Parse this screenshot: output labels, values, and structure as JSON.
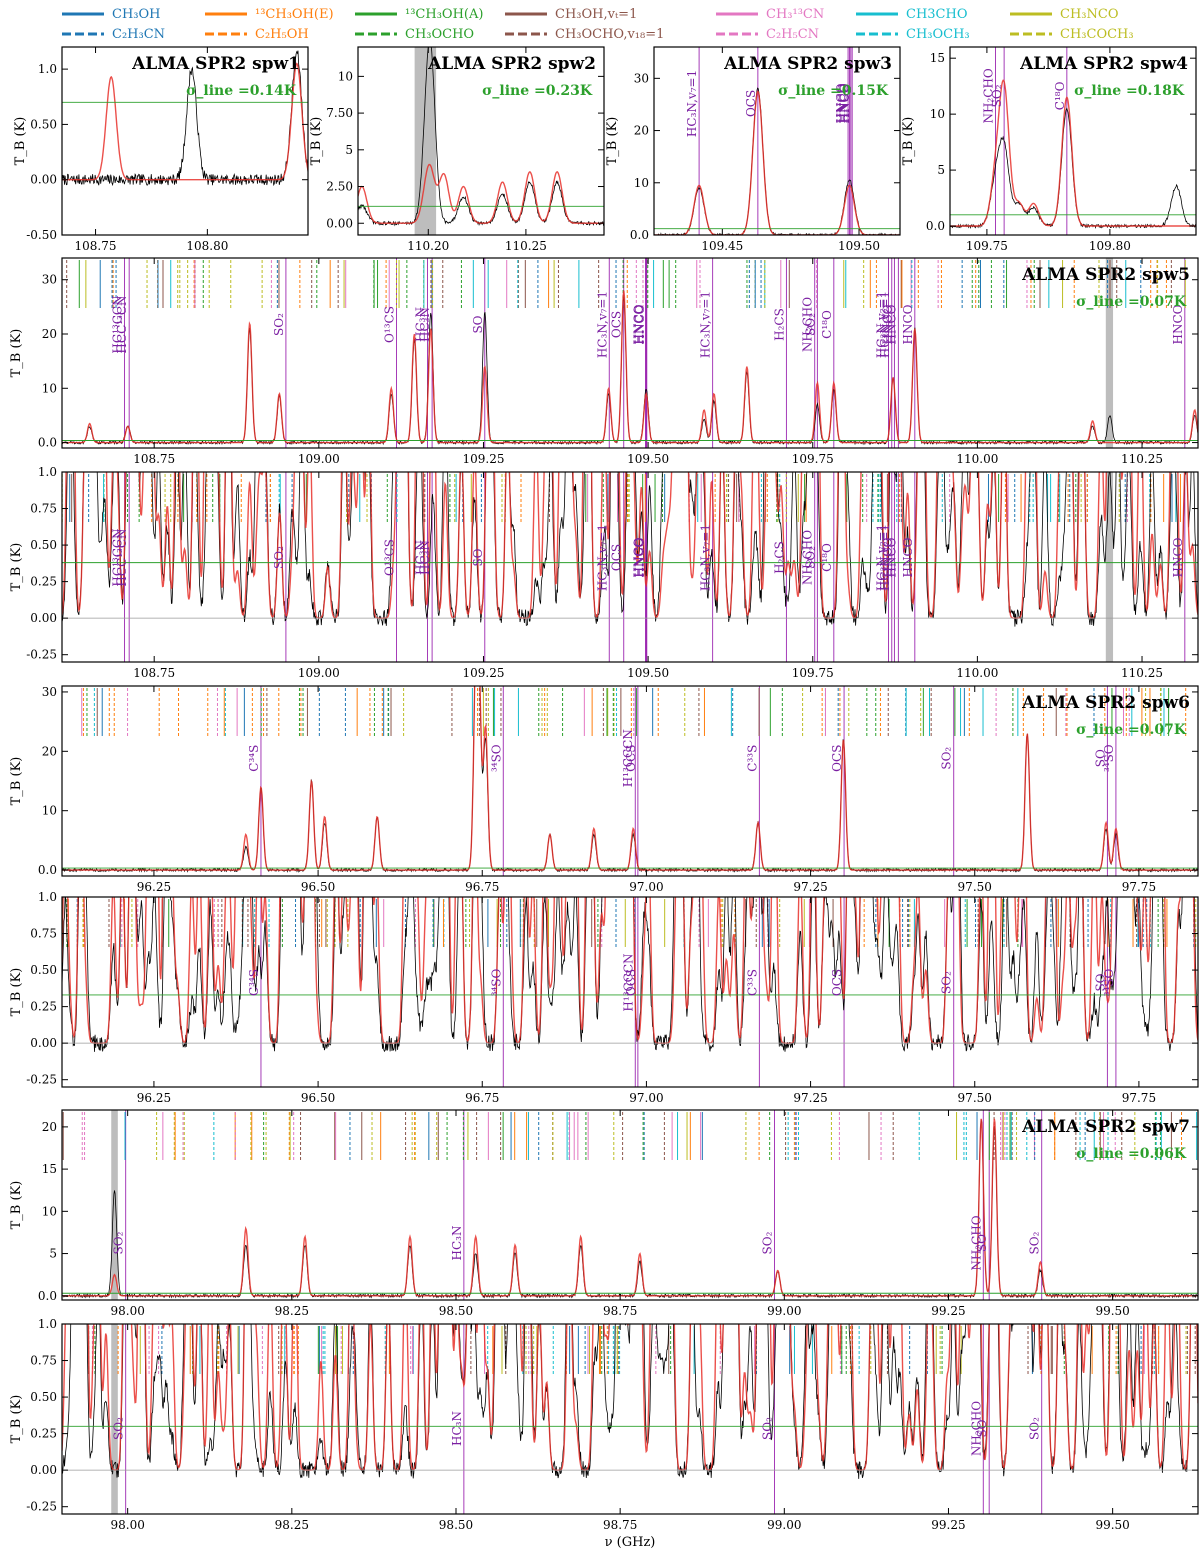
{
  "legend": [
    {
      "label": "CH₃OH",
      "color": "#1f77b4",
      "dash": "solid"
    },
    {
      "label": "C₂H₃CN",
      "color": "#1f77b4",
      "dash": "dashed"
    },
    {
      "label": "¹³CH₃OH(E)",
      "color": "#ff7f0e",
      "dash": "solid"
    },
    {
      "label": "C₂H₅OH",
      "color": "#ff7f0e",
      "dash": "dashed"
    },
    {
      "label": "¹³CH₃OH(A)",
      "color": "#2ca02c",
      "dash": "solid"
    },
    {
      "label": "CH₃OCHO",
      "color": "#2ca02c",
      "dash": "dashed"
    },
    {
      "label": "CH₃OH,vₜ=1",
      "color": "#8c564b",
      "dash": "solid"
    },
    {
      "label": "CH₃OCHO,v₁₈=1",
      "color": "#8c564b",
      "dash": "dashed"
    },
    {
      "label": "CH₃¹³CN",
      "color": "#e377c2",
      "dash": "solid"
    },
    {
      "label": "C₂H₅CN",
      "color": "#e377c2",
      "dash": "dashed"
    },
    {
      "label": "CH3CHO",
      "color": "#17becf",
      "dash": "solid"
    },
    {
      "label": "CH₃OCH₃",
      "color": "#17becf",
      "dash": "dashed"
    },
    {
      "label": "CH₃NCO",
      "color": "#bcbd22",
      "dash": "solid"
    },
    {
      "label": "CH₃COCH₃",
      "color": "#bcbd22",
      "dash": "dashed"
    }
  ],
  "colors": {
    "observed": "#000000",
    "model": "#e8312b",
    "noise": "#2ca02c",
    "transition": "#9c27b0",
    "flagged": "#bdbdbd"
  },
  "xlabel": "ν (GHz)",
  "ylabel": "T_B (K)",
  "chart_data": [
    {
      "type": "line",
      "title": "ALMA SPR2 spw1",
      "sigma": "σ_line =0.14K",
      "xlim": [
        108.735,
        108.845
      ],
      "ylim": [
        -0.5,
        1.2
      ],
      "xticks": [
        108.75,
        108.8
      ],
      "yticks": [
        -0.5,
        0.0,
        0.5,
        1.0
      ],
      "noise_level": 0.7,
      "peaks": [
        {
          "x": 108.757,
          "model": 0.93
        },
        {
          "x": 108.793,
          "obs": 1.0
        },
        {
          "x": 108.84,
          "model": 1.05,
          "obs": 1.15
        }
      ],
      "flag_bands": [],
      "transitions": [],
      "line_labels": [],
      "label_y_frac": 0.3
    },
    {
      "type": "line",
      "title": "ALMA SPR2 spw2",
      "sigma": "σ_line =0.23K",
      "xlim": [
        110.164,
        110.29
      ],
      "ylim": [
        -0.8,
        12.0
      ],
      "xticks": [
        110.2,
        110.25
      ],
      "yticks": [
        0.0,
        2.5,
        5.0,
        7.5,
        10.0
      ],
      "noise_level": 1.15,
      "peaks": [
        {
          "x": 110.166,
          "model": 2.5,
          "obs": 1.2
        },
        {
          "x": 110.199,
          "model": 1.2,
          "obs": 2.0
        },
        {
          "x": 110.201,
          "obs": 11.0,
          "model": 3.0
        },
        {
          "x": 110.208,
          "model": 3.3
        },
        {
          "x": 110.218,
          "model": 2.5,
          "obs": 1.8
        },
        {
          "x": 110.238,
          "model": 2.8,
          "obs": 2.0
        },
        {
          "x": 110.252,
          "model": 3.5,
          "obs": 2.8
        },
        {
          "x": 110.266,
          "model": 3.5,
          "obs": 2.8
        }
      ],
      "flag_bands": [
        [
          110.193,
          110.204
        ]
      ],
      "transitions": [],
      "line_labels": [],
      "label_y_frac": 0.3
    },
    {
      "type": "line",
      "title": "ALMA SPR2 spw3",
      "sigma": "σ_line =0.15K",
      "xlim": [
        109.425,
        109.515
      ],
      "ylim": [
        0,
        36
      ],
      "xticks": [
        109.45,
        109.5
      ],
      "yticks": [
        0,
        10,
        20,
        30
      ],
      "noise_level": 1.2,
      "peaks": [
        {
          "x": 109.4415,
          "model": 9.5,
          "obs": 9.0
        },
        {
          "x": 109.463,
          "model": 27.5,
          "obs": 28.0
        },
        {
          "x": 109.4965,
          "model": 9.5,
          "obs": 10.5
        }
      ],
      "flag_bands": [],
      "transitions": [
        109.4415,
        109.463,
        109.496,
        109.4965,
        109.497,
        109.4975
      ],
      "line_labels": [
        "HC₃N,v₇=1",
        "OCS",
        "HNCO",
        "HNCO",
        "HNCO",
        "HNCO"
      ],
      "label_y_frac": 0.3
    },
    {
      "type": "line",
      "title": "ALMA SPR2 spw4",
      "sigma": "σ_line =0.18K",
      "xlim": [
        109.735,
        109.835
      ],
      "ylim": [
        -0.8,
        16
      ],
      "xticks": [
        109.75,
        109.8
      ],
      "yticks": [
        0,
        5,
        10,
        15
      ],
      "noise_level": 1.0,
      "peaks": [
        {
          "x": 109.7535,
          "model": 4.0,
          "obs": 3.8
        },
        {
          "x": 109.757,
          "model": 12.0,
          "obs": 6.8
        },
        {
          "x": 109.763,
          "model": 2.0,
          "obs": 2.0
        },
        {
          "x": 109.769,
          "model": 2.0,
          "obs": 1.6
        },
        {
          "x": 109.7825,
          "model": 11.5,
          "obs": 10.5
        },
        {
          "x": 109.827,
          "obs": 3.6
        }
      ],
      "flag_bands": [],
      "transitions": [
        109.7535,
        109.757,
        109.7825
      ],
      "line_labels": [
        "NH₂CHO",
        "SO₂",
        "C¹⁸O"
      ],
      "label_y_frac": 0.26
    },
    {
      "type": "line",
      "title": "ALMA SPR2 spw5",
      "sigma": "σ_line =0.07K",
      "xlim": [
        108.61,
        110.335
      ],
      "ylim": [
        -1,
        34
      ],
      "xticks": [
        108.75,
        109.0,
        109.25,
        109.5,
        109.75,
        110.0,
        110.25
      ],
      "yticks": [
        0,
        10,
        20,
        30
      ],
      "noise_level": 0.38,
      "peaks": [
        {
          "x": 108.652,
          "model": 3.5,
          "obs": 3.0
        },
        {
          "x": 108.71,
          "model": 3.0,
          "obs": 3.2
        },
        {
          "x": 108.895,
          "model": 22.0,
          "obs": 21.0
        },
        {
          "x": 108.94,
          "model": 9.0,
          "obs": 8.5
        },
        {
          "x": 109.11,
          "model": 10.0,
          "obs": 9.0
        },
        {
          "x": 109.145,
          "model": 20.0,
          "obs": 19.0
        },
        {
          "x": 109.17,
          "model": 21.0,
          "obs": 24.0
        },
        {
          "x": 109.252,
          "model": 14.0,
          "obs": 24.0
        },
        {
          "x": 109.44,
          "model": 10.0,
          "obs": 9.0
        },
        {
          "x": 109.463,
          "model": 28.0,
          "obs": 27.0
        },
        {
          "x": 109.497,
          "model": 9.0,
          "obs": 10.0
        },
        {
          "x": 109.585,
          "model": 6.0,
          "obs": 4.5
        },
        {
          "x": 109.6,
          "model": 9.0,
          "obs": 7.5
        },
        {
          "x": 109.65,
          "model": 14.0,
          "obs": 13.0
        },
        {
          "x": 109.757,
          "model": 11.0,
          "obs": 7.0
        },
        {
          "x": 109.782,
          "model": 11.0,
          "obs": 10.0
        },
        {
          "x": 109.872,
          "model": 12.0,
          "obs": 12.0
        },
        {
          "x": 109.905,
          "model": 21.0,
          "obs": 21.0
        },
        {
          "x": 110.175,
          "model": 4.0,
          "obs": 3.0
        },
        {
          "x": 110.201,
          "obs": 5.0
        },
        {
          "x": 110.33,
          "model": 6.0,
          "obs": 5.0
        }
      ],
      "flag_bands": [
        [
          110.195,
          110.206
        ]
      ],
      "transitions": [
        108.705,
        108.712,
        108.95,
        109.118,
        109.165,
        109.172,
        109.252,
        109.441,
        109.463,
        109.496,
        109.497,
        109.498,
        109.598,
        109.71,
        109.753,
        109.757,
        109.782,
        109.865,
        109.87,
        109.874,
        109.88,
        109.905,
        110.315
      ],
      "line_labels": [
        "HC¹³CCN",
        "HCC¹³CN",
        "SO₂",
        "O¹³CS",
        "HC₃N",
        "HC₃N",
        "SO",
        "HC₃N,v₇=1",
        "OCS",
        "HNCO",
        "HNCO",
        "HNCO",
        "HC₃N,v₇=1",
        "H₂CS",
        "NH₂CHO",
        "SO₂",
        "C¹⁸O",
        "HC₃N,v₇=1",
        "HC₃N,v₇=1",
        "HNCO",
        "HNCO",
        "HNCO",
        "HNCO"
      ],
      "label_y_frac": 0.35
    },
    {
      "type": "line",
      "title": "",
      "sigma": "",
      "xlim": [
        108.61,
        110.335
      ],
      "ylim": [
        -0.3,
        1.0
      ],
      "xticks": [
        108.75,
        109.0,
        109.25,
        109.5,
        109.75,
        110.0,
        110.25
      ],
      "yticks": [
        -0.25,
        0.0,
        0.25,
        0.5,
        0.75,
        1.0
      ],
      "noise_level": 0.38,
      "zoom": true,
      "flag_bands": [
        [
          110.195,
          110.206
        ]
      ],
      "transitions": [
        108.705,
        108.712,
        108.95,
        109.118,
        109.165,
        109.172,
        109.252,
        109.441,
        109.463,
        109.496,
        109.497,
        109.498,
        109.598,
        109.71,
        109.753,
        109.757,
        109.782,
        109.865,
        109.87,
        109.874,
        109.88,
        109.905,
        110.315
      ],
      "line_labels": [
        "HC¹³CCN",
        "HCC¹³CN",
        "SO₂",
        "O¹³CS",
        "HC₃N",
        "HC₃N",
        "SO",
        "HC₃N,v₇=1",
        "OCS",
        "HNCO",
        "HNCO",
        "HNCO",
        "HC₃N,v₇=1",
        "H₂CS",
        "NH₂CHO",
        "SO₂",
        "C¹⁸O",
        "HC₃N,v₇=1",
        "HC₃N,v₇=1",
        "HNCO",
        "HNCO",
        "HNCO",
        "HNCO"
      ],
      "label_y_frac": 0.45,
      "peaks": []
    },
    {
      "type": "line",
      "title": "ALMA SPR2 spw6",
      "sigma": "σ_line =0.07K",
      "xlim": [
        96.11,
        97.84
      ],
      "ylim": [
        -1,
        31
      ],
      "xticks": [
        96.25,
        96.5,
        96.75,
        97.0,
        97.25,
        97.5,
        97.75
      ],
      "yticks": [
        0,
        10,
        20,
        30
      ],
      "noise_level": 0.33,
      "peaks": [
        {
          "x": 96.39,
          "model": 6.0,
          "obs": 4.0
        },
        {
          "x": 96.413,
          "model": 14.0,
          "obs": 14.0
        },
        {
          "x": 96.49,
          "model": 15.0,
          "obs": 15.0
        },
        {
          "x": 96.51,
          "model": 9.0,
          "obs": 8.0
        },
        {
          "x": 96.59,
          "model": 9.0,
          "obs": 9.0
        },
        {
          "x": 96.74,
          "model": 30.0,
          "obs": 30.0
        },
        {
          "x": 96.745,
          "model": 29.0,
          "obs": 28.0
        },
        {
          "x": 96.755,
          "model": 24.0,
          "obs": 22.0
        },
        {
          "x": 96.853,
          "model": 6.0,
          "obs": 6.0
        },
        {
          "x": 96.92,
          "model": 7.0,
          "obs": 6.0
        },
        {
          "x": 96.98,
          "model": 7.0,
          "obs": 6.0
        },
        {
          "x": 97.17,
          "model": 8.0,
          "obs": 8.0
        },
        {
          "x": 97.3,
          "model": 22.0,
          "obs": 22.0
        },
        {
          "x": 97.58,
          "model": 23.0,
          "obs": 23.0
        },
        {
          "x": 97.7,
          "model": 8.0,
          "obs": 7.0
        },
        {
          "x": 97.715,
          "model": 7.0,
          "obs": 6.0
        }
      ],
      "flag_bands": [],
      "transitions": [
        96.413,
        96.782,
        96.983,
        96.987,
        97.172,
        97.301,
        97.468,
        97.702,
        97.715
      ],
      "line_labels": [
        "C³⁴S",
        "³⁴SO",
        "H¹³CCCN",
        "OCS",
        "C³³S",
        "OCS",
        "SO₂",
        "SO",
        "³⁴SO"
      ],
      "label_y_frac": 0.38
    },
    {
      "type": "line",
      "title": "",
      "sigma": "",
      "xlim": [
        96.11,
        97.84
      ],
      "ylim": [
        -0.3,
        1.0
      ],
      "xticks": [
        96.25,
        96.5,
        96.75,
        97.0,
        97.25,
        97.5,
        97.75
      ],
      "yticks": [
        -0.25,
        0.0,
        0.25,
        0.5,
        0.75,
        1.0
      ],
      "noise_level": 0.33,
      "zoom": true,
      "flag_bands": [],
      "transitions": [
        96.413,
        96.782,
        96.983,
        96.987,
        97.172,
        97.301,
        97.468,
        97.702,
        97.715
      ],
      "line_labels": [
        "C³⁴S",
        "³⁴SO",
        "H¹³CCCN",
        "OCS",
        "C³³S",
        "OCS",
        "SO₂",
        "SO",
        "³⁴SO"
      ],
      "label_y_frac": 0.45,
      "peaks": []
    },
    {
      "type": "line",
      "title": "ALMA SPR2 spw7",
      "sigma": "σ_line =0.06K",
      "xlim": [
        97.9,
        99.63
      ],
      "ylim": [
        -0.5,
        22
      ],
      "xticks": [
        98.0,
        98.25,
        98.5,
        98.75,
        99.0,
        99.25,
        99.5
      ],
      "yticks": [
        0,
        5,
        10,
        15,
        20
      ],
      "noise_level": 0.3,
      "peaks": [
        {
          "x": 97.98,
          "obs": 12.5,
          "model": 2.5
        },
        {
          "x": 98.18,
          "model": 8.0,
          "obs": 6.0
        },
        {
          "x": 98.27,
          "model": 7.0,
          "obs": 6.0
        },
        {
          "x": 98.43,
          "model": 7.0,
          "obs": 6.0
        },
        {
          "x": 98.53,
          "model": 7.0,
          "obs": 5.0
        },
        {
          "x": 98.59,
          "model": 6.0,
          "obs": 5.0
        },
        {
          "x": 98.69,
          "model": 7.0,
          "obs": 6.0
        },
        {
          "x": 98.78,
          "model": 5.0,
          "obs": 4.0
        },
        {
          "x": 98.99,
          "model": 3.0,
          "obs": 3.0
        },
        {
          "x": 99.3,
          "model": 21.0,
          "obs": 21.0
        },
        {
          "x": 99.32,
          "model": 21.0,
          "obs": 20.0
        },
        {
          "x": 99.39,
          "model": 4.0,
          "obs": 3.0
        }
      ],
      "flag_bands": [
        [
          97.975,
          97.985
        ]
      ],
      "transitions": [
        97.997,
        98.512,
        98.985,
        99.303,
        99.312,
        99.392
      ],
      "line_labels": [
        "SO₂",
        "HC₃N",
        "SO₂",
        "NH₂CHO",
        "SO",
        "SO₂"
      ],
      "label_y_frac": 0.7
    },
    {
      "type": "line",
      "title": "",
      "sigma": "",
      "xlim": [
        97.9,
        99.63
      ],
      "ylim": [
        -0.3,
        1.0
      ],
      "xticks": [
        98.0,
        98.25,
        98.5,
        98.75,
        99.0,
        99.25,
        99.5
      ],
      "yticks": [
        -0.25,
        0.0,
        0.25,
        0.5,
        0.75,
        1.0
      ],
      "noise_level": 0.3,
      "zoom": true,
      "flag_bands": [
        [
          97.975,
          97.985
        ]
      ],
      "transitions": [
        97.997,
        98.512,
        98.985,
        99.303,
        99.312,
        99.392
      ],
      "line_labels": [
        "SO₂",
        "HC₃N",
        "SO₂",
        "NH₂CHO",
        "SO",
        "SO₂"
      ],
      "label_y_frac": 0.55,
      "peaks": []
    }
  ]
}
